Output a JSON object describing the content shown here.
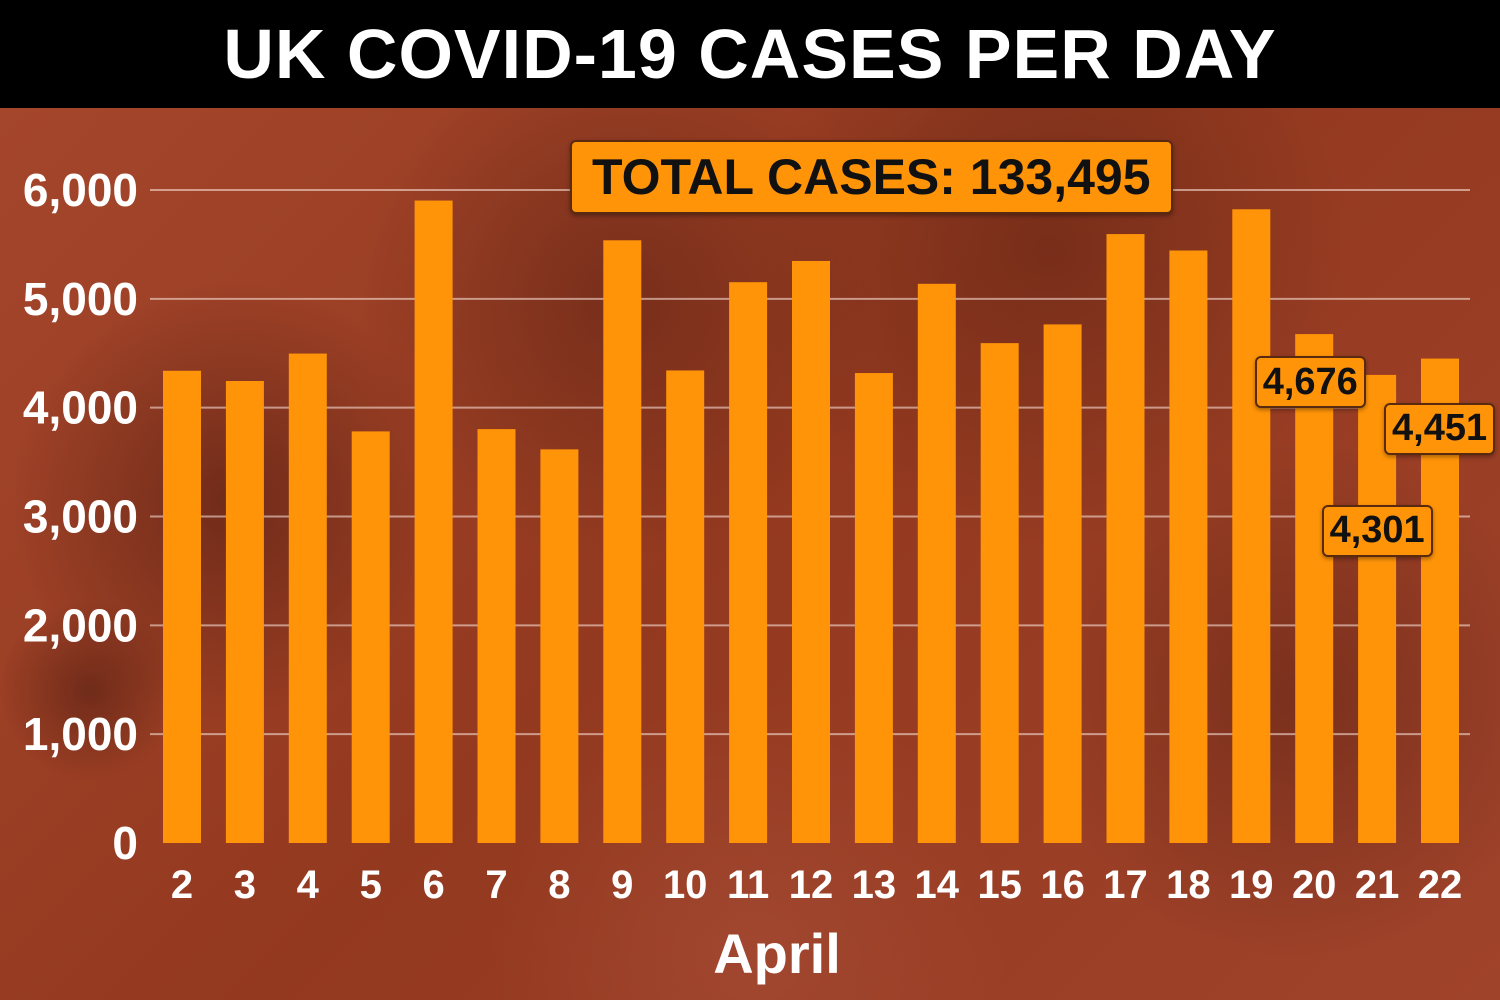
{
  "title": "UK COVID-19 CASES PER DAY",
  "total_label": "TOTAL CASES:  133,495",
  "colors": {
    "bar": "#ff9408",
    "background": "#9a3f28",
    "title_bar": "#000000"
  },
  "chart_data": {
    "type": "bar",
    "title": "UK COVID-19 CASES PER DAY",
    "xlabel": "April",
    "ylabel": "",
    "ylim": [
      0,
      6000
    ],
    "yticks": [
      0,
      1000,
      2000,
      3000,
      4000,
      5000,
      6000
    ],
    "ytick_labels": [
      "0",
      "1,000",
      "2,000",
      "3,000",
      "4,000",
      "5,000",
      "6,000"
    ],
    "grid": true,
    "categories": [
      "2",
      "3",
      "4",
      "5",
      "6",
      "7",
      "8",
      "9",
      "10",
      "11",
      "12",
      "13",
      "14",
      "15",
      "16",
      "17",
      "18",
      "19",
      "20",
      "21",
      "22"
    ],
    "values": [
      4339,
      4245,
      4497,
      3782,
      5903,
      3803,
      3617,
      5538,
      4342,
      5153,
      5348,
      4318,
      5138,
      4593,
      4765,
      5595,
      5444,
      5823,
      4676,
      4301,
      4451
    ],
    "annotations": [
      {
        "category": "20",
        "text": "4,676"
      },
      {
        "category": "21",
        "text": "4,301"
      },
      {
        "category": "22",
        "text": "4,451"
      }
    ],
    "total_cases": "133,495"
  }
}
